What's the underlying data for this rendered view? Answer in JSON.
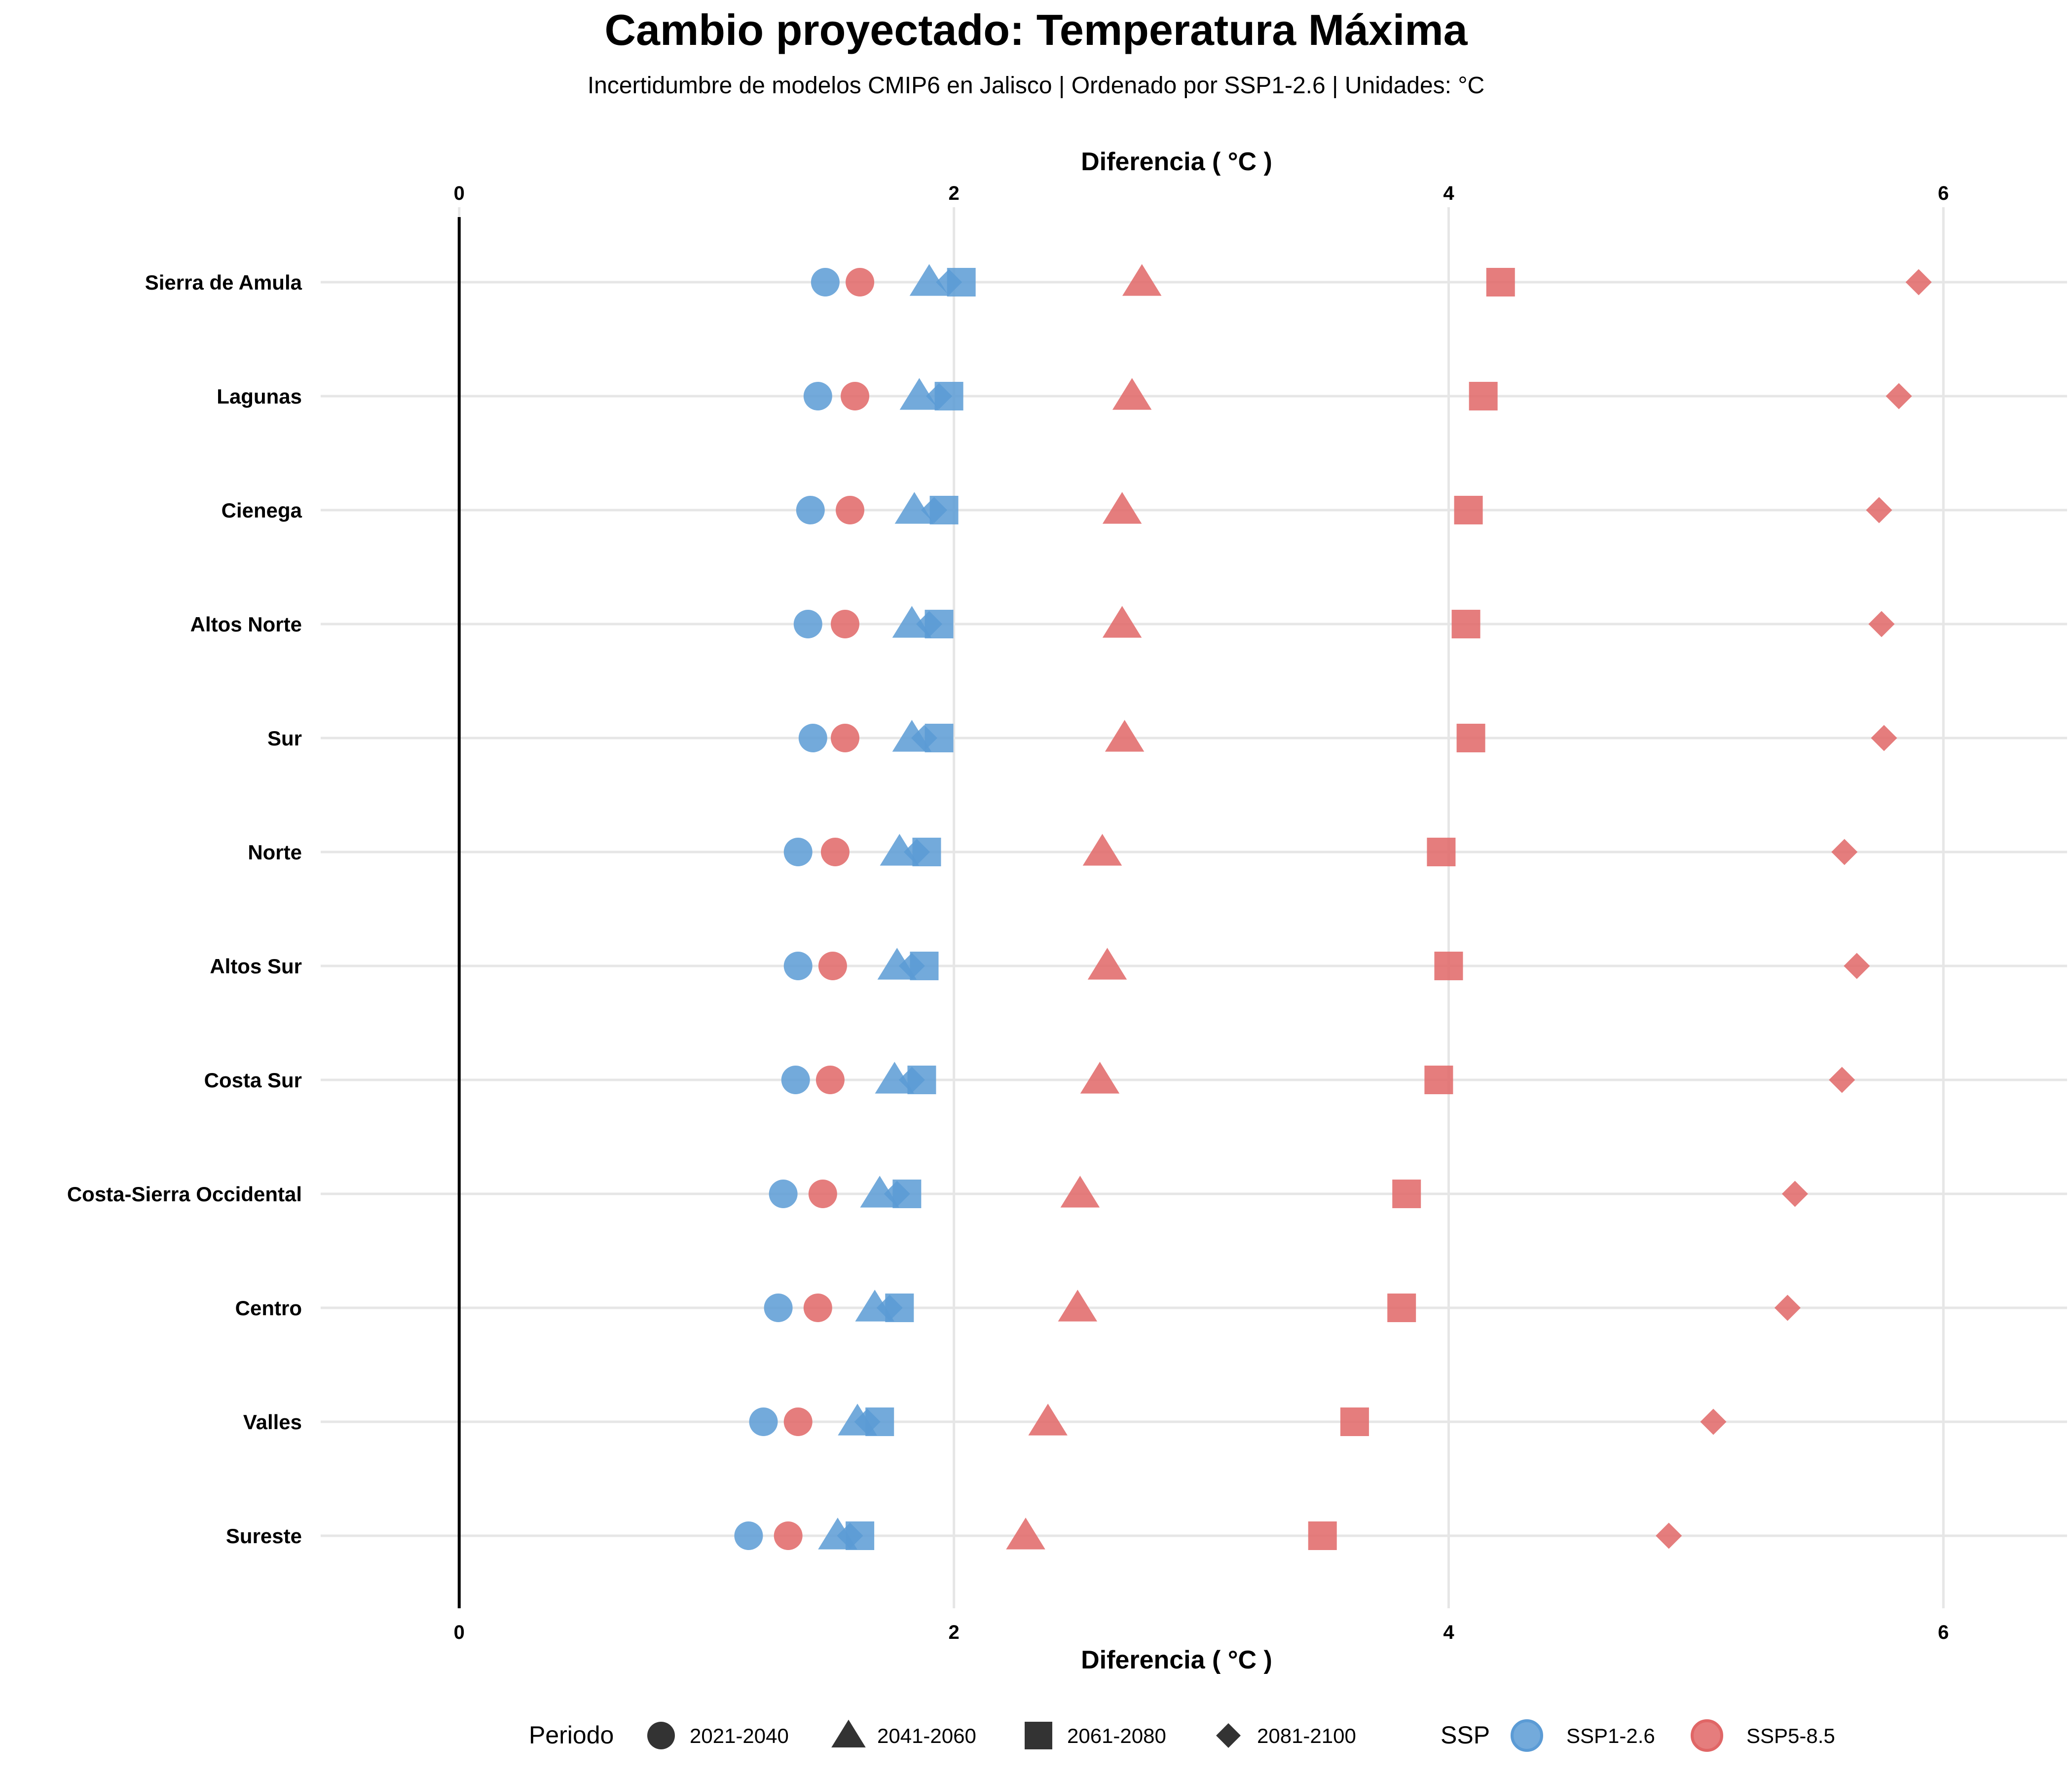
{
  "chart_data": {
    "type": "scatter",
    "title": "Cambio proyectado: Temperatura Máxima",
    "subtitle": "Incertidumbre de modelos CMIP6 en Jalisco | Ordenado por SSP1-2.6 | Unidades: °C",
    "xlabel": "Diferencia ( °C )",
    "ylabel": "",
    "xlim": [
      -0.56,
      6.5
    ],
    "xticks": [
      0,
      2,
      4,
      6
    ],
    "grid": true,
    "legend": {
      "position": "bottom",
      "period_title": "Periodo",
      "ssp_title": "SSP",
      "periods": [
        {
          "label": "2021-2040",
          "shape": "circle"
        },
        {
          "label": "2041-2060",
          "shape": "triangle"
        },
        {
          "label": "2061-2080",
          "shape": "square"
        },
        {
          "label": "2081-2100",
          "shape": "diamond"
        }
      ],
      "ssps": [
        {
          "label": "SSP1-2.6",
          "color": "#5b9bd5"
        },
        {
          "label": "SSP5-8.5",
          "color": "#e06666"
        }
      ]
    },
    "categories": [
      "Sierra de Amula",
      "Lagunas",
      "Cienega",
      "Altos Norte",
      "Sur",
      "Norte",
      "Altos Sur",
      "Costa Sur",
      "Costa-Sierra Occidental",
      "Centro",
      "Valles",
      "Sureste"
    ],
    "series": [
      {
        "ssp": "SSP1-2.6",
        "period": "2021-2040",
        "values": [
          1.48,
          1.45,
          1.42,
          1.41,
          1.43,
          1.37,
          1.37,
          1.36,
          1.31,
          1.29,
          1.23,
          1.17
        ]
      },
      {
        "ssp": "SSP1-2.6",
        "period": "2041-2060",
        "values": [
          1.9,
          1.86,
          1.84,
          1.83,
          1.83,
          1.78,
          1.77,
          1.76,
          1.7,
          1.68,
          1.61,
          1.53
        ]
      },
      {
        "ssp": "SSP1-2.6",
        "period": "2061-2080",
        "values": [
          2.03,
          1.98,
          1.96,
          1.94,
          1.94,
          1.89,
          1.88,
          1.87,
          1.81,
          1.78,
          1.7,
          1.62
        ]
      },
      {
        "ssp": "SSP1-2.6",
        "period": "2081-2100",
        "values": [
          1.98,
          1.94,
          1.92,
          1.9,
          1.88,
          1.85,
          1.83,
          1.83,
          1.77,
          1.74,
          1.65,
          1.58
        ]
      },
      {
        "ssp": "SSP5-8.5",
        "period": "2021-2040",
        "values": [
          1.62,
          1.6,
          1.58,
          1.56,
          1.56,
          1.52,
          1.51,
          1.5,
          1.47,
          1.45,
          1.37,
          1.33
        ]
      },
      {
        "ssp": "SSP5-8.5",
        "period": "2041-2060",
        "values": [
          2.76,
          2.72,
          2.68,
          2.68,
          2.69,
          2.6,
          2.62,
          2.59,
          2.51,
          2.5,
          2.38,
          2.29
        ]
      },
      {
        "ssp": "SSP5-8.5",
        "period": "2061-2080",
        "values": [
          4.21,
          4.14,
          4.08,
          4.07,
          4.09,
          3.97,
          4.0,
          3.96,
          3.83,
          3.81,
          3.62,
          3.49
        ]
      },
      {
        "ssp": "SSP5-8.5",
        "period": "2081-2100",
        "values": [
          5.9,
          5.82,
          5.74,
          5.75,
          5.76,
          5.6,
          5.65,
          5.59,
          5.4,
          5.37,
          5.07,
          4.89
        ]
      }
    ]
  }
}
